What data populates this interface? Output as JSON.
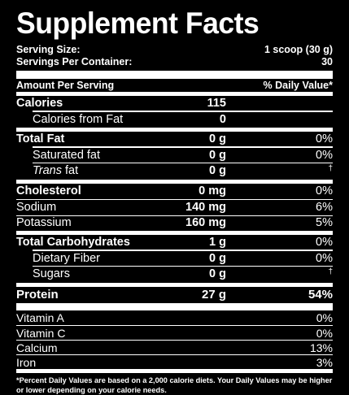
{
  "title": "Supplement Facts",
  "serving": {
    "size_label": "Serving Size:",
    "size_value": "1 scoop (30 g)",
    "per_container_label": "Servings Per Container:",
    "per_container_value": "30"
  },
  "header": {
    "amount_label": "Amount Per Serving",
    "dv_label": "% Daily Value*"
  },
  "nutrients": [
    {
      "label": "Calories",
      "amount": "115",
      "dv": ""
    },
    {
      "label": "Calories from Fat",
      "amount": "0",
      "dv": ""
    },
    {
      "label": "Total Fat",
      "amount": "0 g",
      "dv": "0%"
    },
    {
      "label": "Saturated fat",
      "amount": "0 g",
      "dv": "0%"
    },
    {
      "label_italic": "Trans",
      "label_rest": " fat",
      "amount": "0 g",
      "dv": "†"
    },
    {
      "label": "Cholesterol",
      "amount": "0 mg",
      "dv": "0%"
    },
    {
      "label": "Sodium",
      "amount": "140 mg",
      "dv": "6%"
    },
    {
      "label": "Potassium",
      "amount": "160 mg",
      "dv": "5%"
    },
    {
      "label": "Total Carbohydrates",
      "amount": "1 g",
      "dv": "0%"
    },
    {
      "label": "Dietary Fiber",
      "amount": "0 g",
      "dv": "0%"
    },
    {
      "label": "Sugars",
      "amount": "0 g",
      "dv": "†"
    },
    {
      "label": "Protein",
      "amount": "27 g",
      "dv": "54%"
    }
  ],
  "vitamins": [
    {
      "label": "Vitamin A",
      "dv": "0%"
    },
    {
      "label": "Vitamin C",
      "dv": "0%"
    },
    {
      "label": "Calcium",
      "dv": "13%"
    },
    {
      "label": "Iron",
      "dv": "3%"
    }
  ],
  "footnote": "*Percent Daily Values are based on a 2,000 calorie diets. Your Daily Values may be higher or lower depending on your calorie needs."
}
